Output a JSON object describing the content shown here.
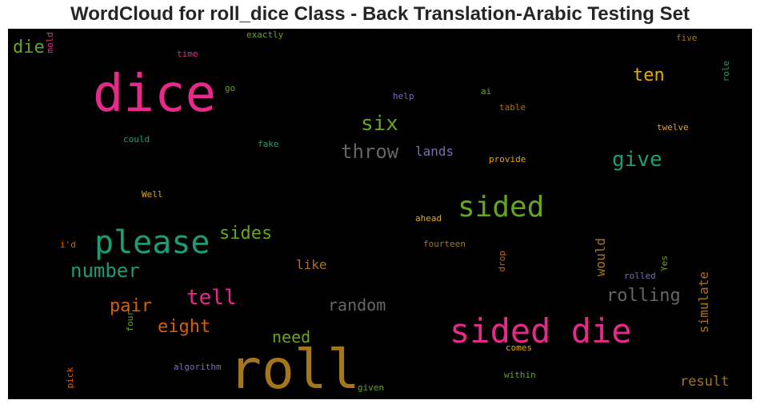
{
  "title": "WordCloud for roll_dice Class - Back Translation-Arabic Testing Set",
  "colors": {
    "pink": "#e7298a",
    "teal": "#1b9e77",
    "green": "#66a61e",
    "orange": "#d95f02",
    "gold": "#e6ab02",
    "brown": "#a6761d",
    "purple": "#7570b3",
    "gray": "#666666",
    "background": "#000000"
  },
  "words": [
    {
      "text": "roll",
      "color": "brown"
    },
    {
      "text": "dice",
      "color": "pink"
    },
    {
      "text": "sided die",
      "color": "pink"
    },
    {
      "text": "please",
      "color": "teal"
    },
    {
      "text": "sided",
      "color": "green"
    },
    {
      "text": "throw",
      "color": "gray"
    },
    {
      "text": "six",
      "color": "green"
    },
    {
      "text": "give",
      "color": "teal"
    },
    {
      "text": "ten",
      "color": "gold"
    },
    {
      "text": "tell",
      "color": "pink"
    },
    {
      "text": "number",
      "color": "teal"
    },
    {
      "text": "sides",
      "color": "green"
    },
    {
      "text": "eight",
      "color": "orange"
    },
    {
      "text": "pair",
      "color": "orange"
    },
    {
      "text": "rolling",
      "color": "gray"
    },
    {
      "text": "random",
      "color": "gray"
    },
    {
      "text": "need",
      "color": "green"
    },
    {
      "text": "die",
      "color": "green"
    },
    {
      "text": "like",
      "color": "brown"
    },
    {
      "text": "lands",
      "color": "purple"
    },
    {
      "text": "result",
      "color": "brown"
    },
    {
      "text": "would",
      "color": "brown"
    },
    {
      "text": "simulate",
      "color": "brown"
    },
    {
      "text": "exactly",
      "color": "green"
    },
    {
      "text": "time",
      "color": "pink"
    },
    {
      "text": "go",
      "color": "green"
    },
    {
      "text": "help",
      "color": "purple"
    },
    {
      "text": "ai",
      "color": "green"
    },
    {
      "text": "table",
      "color": "brown"
    },
    {
      "text": "five",
      "color": "brown"
    },
    {
      "text": "role",
      "color": "teal"
    },
    {
      "text": "mold",
      "color": "pink"
    },
    {
      "text": "could",
      "color": "teal"
    },
    {
      "text": "fake",
      "color": "teal"
    },
    {
      "text": "twelve",
      "color": "gold"
    },
    {
      "text": "provide",
      "color": "gold"
    },
    {
      "text": "Well",
      "color": "gold"
    },
    {
      "text": "ahead",
      "color": "gold"
    },
    {
      "text": "i'd",
      "color": "orange"
    },
    {
      "text": "fourteen",
      "color": "brown"
    },
    {
      "text": "drop",
      "color": "orange"
    },
    {
      "text": "Yes",
      "color": "green"
    },
    {
      "text": "rolled",
      "color": "purple"
    },
    {
      "text": "four",
      "color": "green"
    },
    {
      "text": "comes",
      "color": "gold"
    },
    {
      "text": "algorithm",
      "color": "purple"
    },
    {
      "text": "within",
      "color": "green"
    },
    {
      "text": "pick",
      "color": "orange"
    },
    {
      "text": "given",
      "color": "green"
    }
  ]
}
